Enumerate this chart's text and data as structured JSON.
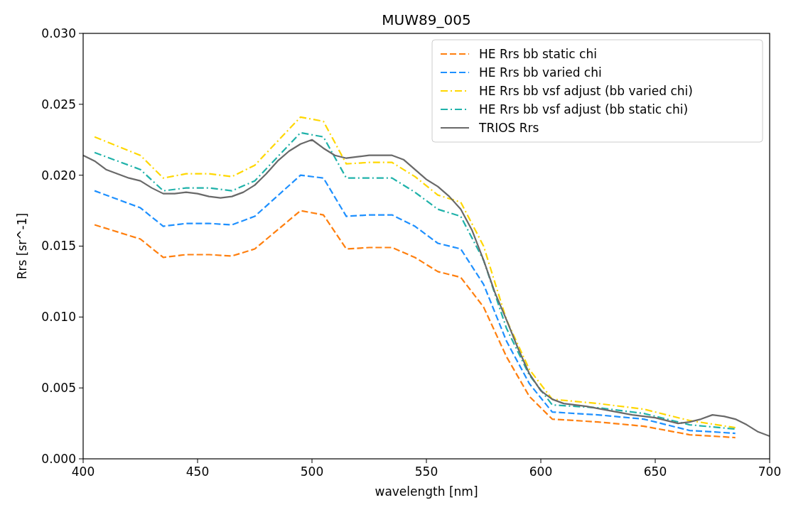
{
  "chart_data": {
    "type": "line",
    "title": "MUW89_005",
    "xlabel": "wavelength [nm]",
    "ylabel": "Rrs [sr^-1]",
    "xlim": [
      400,
      700
    ],
    "xticks": [
      400,
      450,
      500,
      550,
      600,
      650,
      700
    ],
    "ylim": [
      0,
      0.03
    ],
    "yticks": [
      {
        "value": 0,
        "label": "0.000"
      },
      {
        "value": 0.005,
        "label": "0.005"
      },
      {
        "value": 0.01,
        "label": "0.010"
      },
      {
        "value": 0.015,
        "label": "0.015"
      },
      {
        "value": 0.02,
        "label": "0.020"
      },
      {
        "value": 0.025,
        "label": "0.025"
      },
      {
        "value": 0.03,
        "label": "0.030"
      }
    ],
    "legend": "top right",
    "grid": false,
    "marker": "none",
    "x": [
      405,
      425,
      435,
      445,
      455,
      465,
      475,
      495,
      505,
      515,
      525,
      535,
      545,
      555,
      565,
      575,
      585,
      595,
      605,
      625,
      645,
      665,
      685
    ],
    "series": [
      {
        "name": "HE Rrs bb static chi",
        "color": "#ff7f0e",
        "line_style": "dashed",
        "values": [
          0.0165,
          0.0155,
          0.0142,
          0.0144,
          0.0144,
          0.0143,
          0.0148,
          0.0175,
          0.0172,
          0.0148,
          0.0149,
          0.0149,
          0.0142,
          0.0132,
          0.0128,
          0.0107,
          0.0072,
          0.0044,
          0.0028,
          0.0026,
          0.0023,
          0.0017,
          0.0015
        ]
      },
      {
        "name": "HE Rrs bb varied chi",
        "color": "#1e90ff",
        "line_style": "dashed",
        "values": [
          0.0189,
          0.0177,
          0.0164,
          0.0166,
          0.0166,
          0.0165,
          0.0171,
          0.02,
          0.0198,
          0.0171,
          0.0172,
          0.0172,
          0.0164,
          0.0152,
          0.0148,
          0.0123,
          0.0083,
          0.0053,
          0.0033,
          0.0031,
          0.0028,
          0.002,
          0.0018
        ]
      },
      {
        "name": "HE Rrs bb vsf adjust (bb varied chi)",
        "color": "#ffd700",
        "line_style": "dashdot",
        "values": [
          0.0227,
          0.0214,
          0.0198,
          0.0201,
          0.0201,
          0.0199,
          0.0207,
          0.0241,
          0.0238,
          0.0208,
          0.0209,
          0.0209,
          0.0199,
          0.0186,
          0.0181,
          0.015,
          0.0098,
          0.0063,
          0.0042,
          0.0039,
          0.0035,
          0.0027,
          0.0022
        ]
      },
      {
        "name": "HE Rrs bb vsf adjust (bb static chi)",
        "color": "#20b2aa",
        "line_style": "dashdot",
        "values": [
          0.0216,
          0.0204,
          0.0189,
          0.0191,
          0.0191,
          0.0189,
          0.0196,
          0.023,
          0.0227,
          0.0198,
          0.0198,
          0.0198,
          0.0188,
          0.0176,
          0.0171,
          0.014,
          0.0092,
          0.0059,
          0.0038,
          0.0036,
          0.0032,
          0.0024,
          0.0021
        ]
      },
      {
        "name": "TRIOS Rrs",
        "color": "#696969",
        "line_style": "solid",
        "x": [
          400,
          405,
          410,
          415,
          420,
          425,
          430,
          435,
          440,
          445,
          450,
          455,
          460,
          465,
          470,
          475,
          480,
          485,
          490,
          495,
          500,
          505,
          510,
          515,
          520,
          525,
          530,
          535,
          540,
          545,
          550,
          555,
          560,
          565,
          570,
          575,
          580,
          585,
          590,
          595,
          600,
          605,
          610,
          620,
          630,
          640,
          650,
          660,
          665,
          670,
          675,
          680,
          685,
          690,
          695,
          700
        ],
        "values": [
          0.0214,
          0.021,
          0.0204,
          0.0201,
          0.0198,
          0.0196,
          0.0191,
          0.0187,
          0.0187,
          0.0188,
          0.0187,
          0.0185,
          0.0184,
          0.0185,
          0.0188,
          0.0193,
          0.0201,
          0.021,
          0.0217,
          0.0222,
          0.0225,
          0.0219,
          0.0214,
          0.0212,
          0.0213,
          0.0214,
          0.0214,
          0.0214,
          0.0211,
          0.0204,
          0.0197,
          0.0192,
          0.0185,
          0.0176,
          0.0161,
          0.014,
          0.0117,
          0.0098,
          0.0078,
          0.006,
          0.0048,
          0.0042,
          0.0039,
          0.0037,
          0.0034,
          0.0031,
          0.0029,
          0.0025,
          0.0026,
          0.0028,
          0.0031,
          0.003,
          0.0028,
          0.0024,
          0.0019,
          0.0016
        ]
      }
    ]
  }
}
